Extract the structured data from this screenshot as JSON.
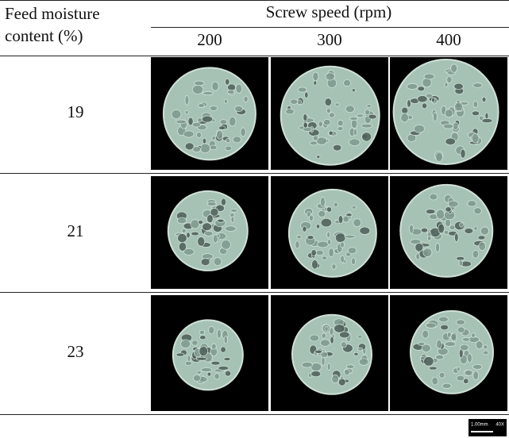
{
  "table": {
    "header": {
      "row_label_lines": [
        "Feed moisture",
        "content (%)"
      ],
      "group": "Screw speed (rpm)",
      "columns": [
        "200",
        "300",
        "400"
      ]
    },
    "rows": [
      {
        "label": "19"
      },
      {
        "label": "21"
      },
      {
        "label": "23"
      }
    ],
    "scale_bar": {
      "length": "1.00mm",
      "magnification": "40X"
    }
  }
}
